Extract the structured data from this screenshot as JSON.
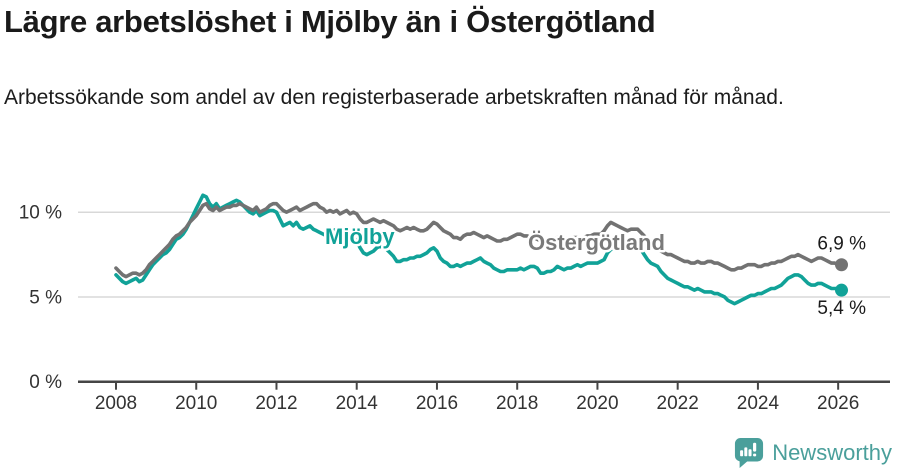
{
  "header": {
    "title": "Lägre arbetslöshet i Mjölby än i Östergötland",
    "subtitle": "Arbetssökande som andel av den registerbaserade arbetskraften månad för månad."
  },
  "footer": {
    "brand": "Newsworthy"
  },
  "colors": {
    "mjolby": "#11a298",
    "ostergotland": "#727272",
    "ostergotland_label": "#7a7a7a",
    "grid": "#d8d8d8",
    "axis": "#454545",
    "text": "#1a1a1a",
    "tick_text": "#333333",
    "brand_teal": "#4a9f9b"
  },
  "chart_data": {
    "type": "line",
    "title": "Lägre arbetslöshet i Mjölby än i Östergötland",
    "subtitle": "Arbetssökande som andel av den registerbaserade arbetskraften månad för månad.",
    "unit": "%",
    "frequency": "monthly",
    "x_start": 2008,
    "x_step": 0.0833333,
    "xlim": [
      2007.9,
      2027.3
    ],
    "ylim": [
      0,
      11.8
    ],
    "grid": "horizontal",
    "xticks": [
      2008,
      2010,
      2012,
      2014,
      2016,
      2018,
      2020,
      2022,
      2024,
      2026
    ],
    "yticks": [
      {
        "value": 0,
        "label": "0 %"
      },
      {
        "value": 5,
        "label": "5 %"
      },
      {
        "value": 10,
        "label": "10 %"
      }
    ],
    "series": [
      {
        "name": "Mjölby",
        "color": "#11a298",
        "end_label": "5,4 %",
        "end_value": 5.4,
        "label_hint": {
          "x": 325,
          "y": 244,
          "end_dy": 24
        },
        "values": [
          6.3,
          6.1,
          5.9,
          5.8,
          5.9,
          6.0,
          6.1,
          5.9,
          6.0,
          6.3,
          6.6,
          6.9,
          7.1,
          7.3,
          7.5,
          7.6,
          7.8,
          8.1,
          8.4,
          8.5,
          8.7,
          9.0,
          9.4,
          9.8,
          10.2,
          10.6,
          11.0,
          10.9,
          10.5,
          10.3,
          10.5,
          10.2,
          10.3,
          10.4,
          10.5,
          10.6,
          10.7,
          10.6,
          10.4,
          10.2,
          10.0,
          9.9,
          10.1,
          9.8,
          9.9,
          10.0,
          10.1,
          10.1,
          10.0,
          9.6,
          9.2,
          9.3,
          9.4,
          9.2,
          9.4,
          9.1,
          9.0,
          9.1,
          9.2,
          9.0,
          8.9,
          8.8,
          8.7,
          8.6,
          8.7,
          8.9,
          9.0,
          8.8,
          8.7,
          8.7,
          8.6,
          8.5,
          8.3,
          7.9,
          7.6,
          7.5,
          7.6,
          7.7,
          7.9,
          8.0,
          7.9,
          7.8,
          7.6,
          7.4,
          7.1,
          7.1,
          7.2,
          7.2,
          7.3,
          7.3,
          7.4,
          7.4,
          7.5,
          7.6,
          7.8,
          7.9,
          7.7,
          7.3,
          7.1,
          7.0,
          6.8,
          6.8,
          6.9,
          6.8,
          6.9,
          7.0,
          7.0,
          7.1,
          7.2,
          7.3,
          7.1,
          7.0,
          6.9,
          6.7,
          6.6,
          6.5,
          6.5,
          6.6,
          6.6,
          6.6,
          6.6,
          6.7,
          6.6,
          6.7,
          6.8,
          6.8,
          6.7,
          6.4,
          6.4,
          6.5,
          6.5,
          6.6,
          6.8,
          6.7,
          6.6,
          6.7,
          6.7,
          6.8,
          6.9,
          6.8,
          6.9,
          7.0,
          7.0,
          7.0,
          7.0,
          7.1,
          7.2,
          7.6,
          7.8,
          7.9,
          8.0,
          7.9,
          7.9,
          7.9,
          8.0,
          8.0,
          8.0,
          7.8,
          7.5,
          7.2,
          7.0,
          6.9,
          6.8,
          6.5,
          6.3,
          6.1,
          6.0,
          5.9,
          5.8,
          5.7,
          5.6,
          5.6,
          5.5,
          5.4,
          5.5,
          5.4,
          5.3,
          5.3,
          5.3,
          5.2,
          5.2,
          5.1,
          5.0,
          4.8,
          4.7,
          4.6,
          4.7,
          4.8,
          4.9,
          5.0,
          5.1,
          5.1,
          5.2,
          5.2,
          5.3,
          5.4,
          5.5,
          5.5,
          5.6,
          5.7,
          5.9,
          6.1,
          6.2,
          6.3,
          6.3,
          6.2,
          6.0,
          5.8,
          5.7,
          5.7,
          5.8,
          5.8,
          5.7,
          5.6,
          5.5,
          5.5,
          5.5,
          5.4
        ]
      },
      {
        "name": "Östergötland",
        "color": "#727272",
        "label_color": "#7a7a7a",
        "end_label": "6,9 %",
        "end_value": 6.9,
        "label_hint": {
          "x": 528,
          "y": 250,
          "end_dy": -15
        },
        "values": [
          6.7,
          6.5,
          6.3,
          6.2,
          6.3,
          6.4,
          6.4,
          6.3,
          6.4,
          6.6,
          6.9,
          7.1,
          7.3,
          7.5,
          7.7,
          7.9,
          8.1,
          8.4,
          8.6,
          8.7,
          8.9,
          9.1,
          9.4,
          9.6,
          9.8,
          10.1,
          10.4,
          10.5,
          10.2,
          10.1,
          10.3,
          10.1,
          10.2,
          10.3,
          10.3,
          10.4,
          10.4,
          10.5,
          10.4,
          10.3,
          10.2,
          10.1,
          10.3,
          10.0,
          10.1,
          10.2,
          10.4,
          10.5,
          10.5,
          10.3,
          10.1,
          10.0,
          10.1,
          10.2,
          10.3,
          10.1,
          10.2,
          10.3,
          10.4,
          10.5,
          10.5,
          10.3,
          10.2,
          10.0,
          10.1,
          10.0,
          10.1,
          9.9,
          10.0,
          10.1,
          9.9,
          10.0,
          9.9,
          9.6,
          9.4,
          9.4,
          9.5,
          9.6,
          9.5,
          9.4,
          9.5,
          9.4,
          9.3,
          9.2,
          9.0,
          8.9,
          9.0,
          9.1,
          9.0,
          9.1,
          9.0,
          8.9,
          8.9,
          9.0,
          9.2,
          9.4,
          9.3,
          9.1,
          8.9,
          8.8,
          8.7,
          8.5,
          8.5,
          8.4,
          8.6,
          8.7,
          8.7,
          8.8,
          8.7,
          8.6,
          8.5,
          8.6,
          8.5,
          8.4,
          8.3,
          8.3,
          8.4,
          8.4,
          8.5,
          8.6,
          8.7,
          8.7,
          8.6,
          8.6,
          8.5,
          8.5,
          8.4,
          8.3,
          8.3,
          8.4,
          8.4,
          8.4,
          8.5,
          8.6,
          8.5,
          8.4,
          8.4,
          8.5,
          8.5,
          8.4,
          8.5,
          8.6,
          8.6,
          8.7,
          8.7,
          8.7,
          8.9,
          9.2,
          9.4,
          9.3,
          9.2,
          9.1,
          9.0,
          8.9,
          9.0,
          9.0,
          9.0,
          8.8,
          8.6,
          8.4,
          8.2,
          8.0,
          7.9,
          7.7,
          7.6,
          7.5,
          7.5,
          7.4,
          7.3,
          7.2,
          7.1,
          7.1,
          7.0,
          7.0,
          7.1,
          7.0,
          7.0,
          7.1,
          7.1,
          7.0,
          7.0,
          6.9,
          6.8,
          6.7,
          6.6,
          6.6,
          6.7,
          6.7,
          6.8,
          6.9,
          6.9,
          6.9,
          6.8,
          6.8,
          6.9,
          6.9,
          7.0,
          7.0,
          7.1,
          7.1,
          7.2,
          7.3,
          7.4,
          7.4,
          7.5,
          7.4,
          7.3,
          7.2,
          7.1,
          7.2,
          7.3,
          7.3,
          7.2,
          7.1,
          7.0,
          7.0,
          6.9,
          6.9
        ]
      }
    ]
  }
}
